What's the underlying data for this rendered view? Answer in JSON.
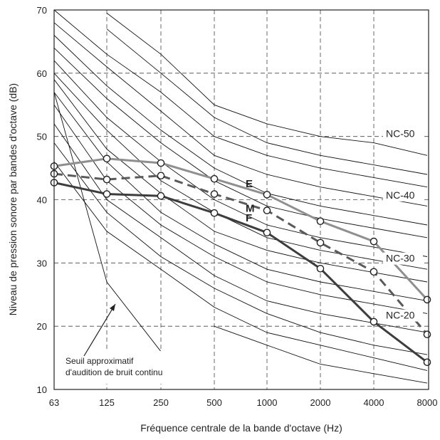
{
  "chart_data": {
    "type": "line",
    "xlabel": "Fréquence centrale de la bande d'octave (Hz)",
    "ylabel": "Niveau de pression sonore par bandes d'octave (dB)",
    "x": [
      "63",
      "125",
      "250",
      "500",
      "1000",
      "2000",
      "4000",
      "8000"
    ],
    "ylim": [
      10,
      70
    ],
    "yticks": [
      10,
      20,
      30,
      40,
      50,
      60,
      70
    ],
    "grid": "dashed",
    "nc_labels": [
      {
        "text": "NC-50",
        "x": "8000",
        "y": 50
      },
      {
        "text": "NC-40",
        "x": "8000",
        "y": 40.3
      },
      {
        "text": "NC-30",
        "x": "8000",
        "y": 30.3
      },
      {
        "text": "NC-20",
        "x": "8000",
        "y": 21.3
      }
    ],
    "nc_curves": [
      [
        null,
        69.5,
        63,
        55,
        52,
        50,
        49,
        47
      ],
      [
        null,
        67,
        60,
        53,
        49,
        47,
        45.5,
        44
      ],
      [
        70,
        63,
        57,
        50,
        47,
        45,
        43.5,
        42
      ],
      [
        68,
        61,
        54,
        47,
        44,
        42,
        40.5,
        39
      ],
      [
        66,
        58,
        51,
        45,
        41,
        39,
        37.5,
        36
      ],
      [
        64,
        56,
        49,
        43,
        39,
        37,
        35.5,
        34
      ],
      [
        62,
        53,
        46,
        40,
        36,
        34,
        32.5,
        31
      ],
      [
        60,
        51,
        43,
        38,
        34,
        32,
        30.5,
        29
      ],
      [
        59,
        48,
        41,
        35,
        32,
        30,
        28.5,
        27
      ],
      [
        57,
        46,
        38,
        33,
        29,
        27,
        25.5,
        24
      ],
      [
        55,
        43,
        36,
        31,
        27,
        25,
        23.5,
        22
      ],
      [
        52,
        40,
        34,
        28,
        24,
        22,
        20.5,
        19
      ],
      [
        49,
        38,
        31,
        26,
        22,
        19,
        17,
        15.5
      ],
      [
        46,
        35,
        29,
        23,
        19,
        17,
        15,
        13
      ],
      [
        null,
        null,
        null,
        20,
        17,
        14,
        12.5,
        11
      ]
    ],
    "threshold_curve": [
      {
        "x": "63",
        "y": 57
      },
      {
        "x": "125",
        "y": 27
      },
      {
        "x": "250",
        "y": 16
      }
    ],
    "series": [
      {
        "name": "E",
        "color": "#8f8f8f",
        "style": "solid",
        "values": [
          45.3,
          46.5,
          45.8,
          43.3,
          40.8,
          36.6,
          33.4,
          24.2
        ]
      },
      {
        "name": "M",
        "color": "#5a5a5a",
        "style": "dashed",
        "values": [
          44.1,
          43.2,
          43.8,
          40.9,
          38.3,
          33.2,
          28.6,
          18.7
        ]
      },
      {
        "name": "F",
        "color": "#3d3d3d",
        "style": "solid",
        "values": [
          42.7,
          40.9,
          40.6,
          37.9,
          34.8,
          29.1,
          20.7,
          14.3
        ]
      }
    ],
    "annotation": {
      "lines": [
        "Seuil approximatif",
        "d'audition de bruit continu"
      ]
    }
  }
}
